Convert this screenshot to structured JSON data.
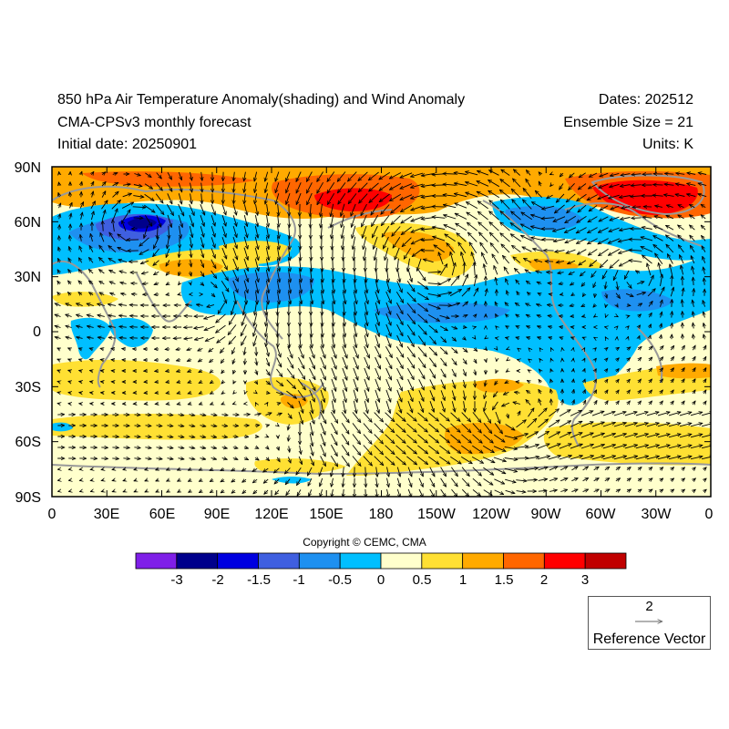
{
  "header": {
    "title": "850 hPa Air Temperature Anomaly(shading) and Wind Anomaly",
    "subtitle": "CMA-CPSv3 monthly forecast",
    "initial_date": "Initial date: 20250901",
    "dates": "Dates: 202512",
    "ensemble": "Ensemble Size = 21",
    "units": "Units: K"
  },
  "axes": {
    "y_ticks": [
      "90N",
      "60N",
      "30N",
      "0",
      "30S",
      "60S",
      "90S"
    ],
    "x_ticks": [
      "0",
      "30E",
      "60E",
      "90E",
      "120E",
      "150E",
      "180",
      "150W",
      "120W",
      "90W",
      "60W",
      "30W",
      "0"
    ]
  },
  "colorbar": {
    "colors": [
      "#7f1fe8",
      "#00008b",
      "#0000e0",
      "#3f5fe0",
      "#1e90f0",
      "#00bfff",
      "#ffffcc",
      "#ffe033",
      "#ffaa00",
      "#ff6600",
      "#ff0000",
      "#c00000"
    ],
    "labels": [
      "-3",
      "-2",
      "-1.5",
      "-1",
      "-0.5",
      "0",
      "0.5",
      "1",
      "1.5",
      "2",
      "3"
    ]
  },
  "copyright": "Copyright © CEMC, CMA",
  "reference_vector": {
    "value": "2",
    "label": "Reference Vector"
  }
}
